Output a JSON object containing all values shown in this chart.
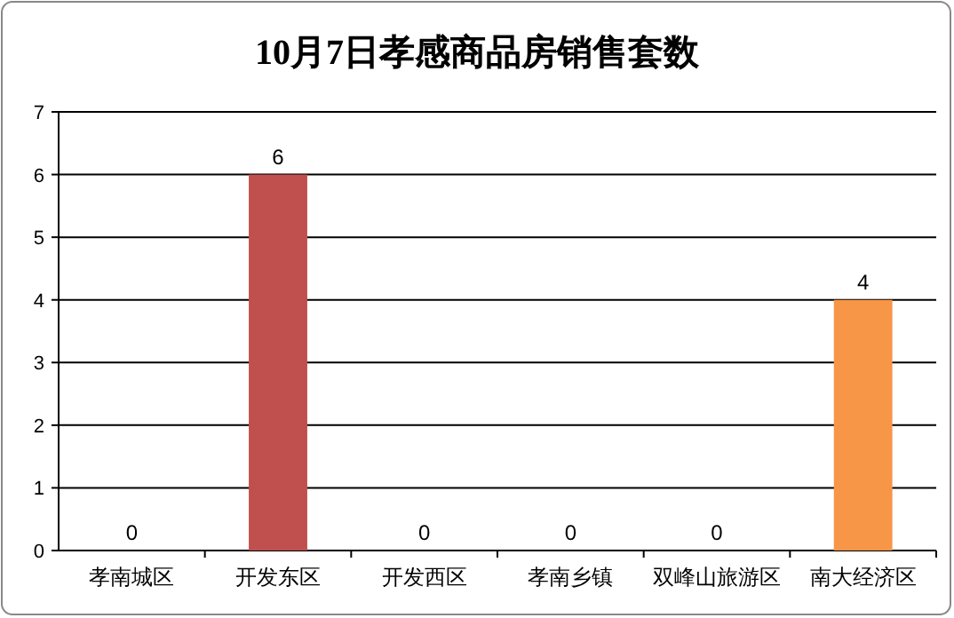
{
  "chart_data": {
    "type": "bar",
    "title": "10月7日孝感商品房销售套数",
    "categories": [
      "孝南城区",
      "开发东区",
      "开发西区",
      "孝南乡镇",
      "双峰山旅游区",
      "南大经济区"
    ],
    "values": [
      0,
      6,
      0,
      0,
      0,
      4
    ],
    "colors": [
      "#4f81bd",
      "#c0504d",
      "#9bbb59",
      "#8064a2",
      "#4bacc6",
      "#f79646"
    ],
    "data_labels": true,
    "ylim": [
      0,
      7
    ],
    "yticks": [
      0,
      1,
      2,
      3,
      4,
      5,
      6,
      7
    ],
    "grid": "y"
  }
}
